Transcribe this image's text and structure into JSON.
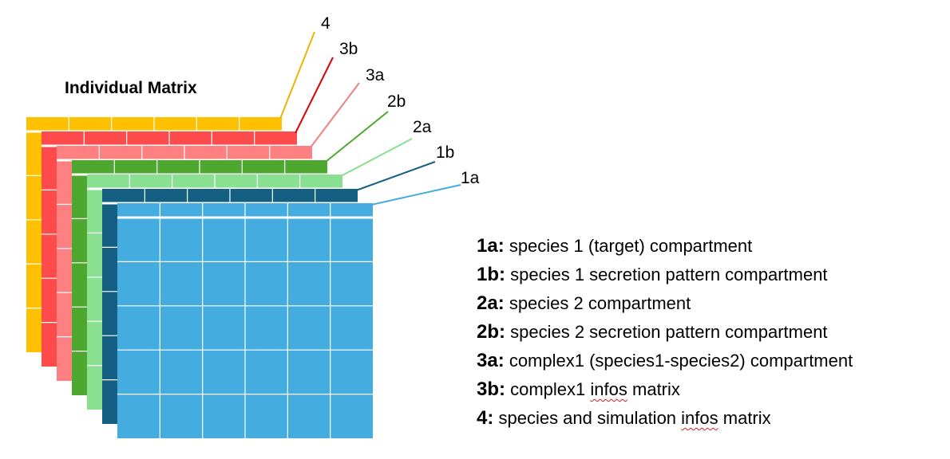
{
  "title": "Individual Matrix",
  "layers": [
    {
      "id": "4",
      "color": "#FFC000",
      "line_color": "#F0B400"
    },
    {
      "id": "3b",
      "color": "#FF4B4B",
      "line_color": "#E00000"
    },
    {
      "id": "3a",
      "color": "#FF8080",
      "line_color": "#F08080"
    },
    {
      "id": "2b",
      "color": "#4EA72E",
      "line_color": "#4EA72E"
    },
    {
      "id": "2a",
      "color": "#88E090",
      "line_color": "#88E090"
    },
    {
      "id": "1b",
      "color": "#156082",
      "line_color": "#156082"
    },
    {
      "id": "1a",
      "color": "#45ACE0",
      "line_color": "#45ACE0"
    }
  ],
  "legend": [
    {
      "key": "1a:",
      "pre": "species 1 (target) compartment",
      "squiggle": "",
      "post": ""
    },
    {
      "key": "1b:",
      "pre": "species 1 secretion pattern compartment",
      "squiggle": "",
      "post": ""
    },
    {
      "key": "2a:",
      "pre": "species 2 compartment",
      "squiggle": "",
      "post": ""
    },
    {
      "key": "2b:",
      "pre": "species 2 secretion pattern compartment",
      "squiggle": "",
      "post": ""
    },
    {
      "key": "3a:",
      "pre": "complex1 (species1-species2) compartment",
      "squiggle": "",
      "post": ""
    },
    {
      "key": "3b:",
      "pre": "complex1 ",
      "squiggle": "infos",
      "post": " matrix"
    },
    {
      "key": "4:",
      "pre": "species and simulation ",
      "squiggle": "infos",
      "post": " matrix"
    }
  ]
}
